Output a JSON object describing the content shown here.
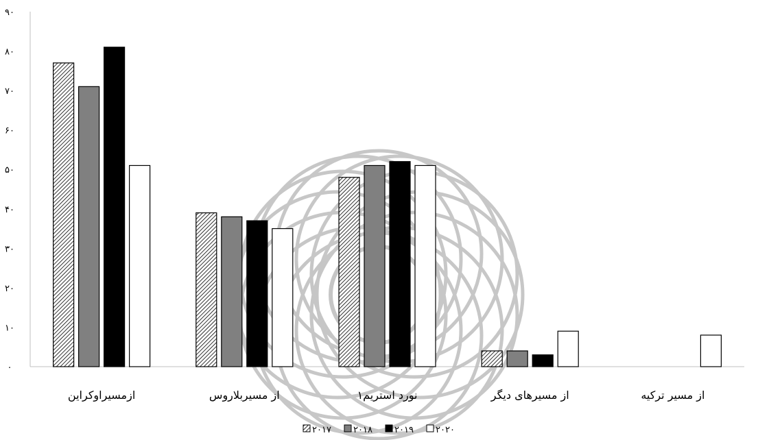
{
  "chart_data": {
    "type": "bar",
    "title": "",
    "xlabel": "",
    "ylabel": "",
    "ylim": [
      0,
      90
    ],
    "yticks": [
      "۰",
      "۱۰",
      "۲۰",
      "۳۰",
      "۴۰",
      "۵۰",
      "۶۰",
      "۷۰",
      "۸۰",
      "۹۰"
    ],
    "categories": [
      "ازمسیراوکراین",
      "از مسیربلاروس",
      "نورد استریم۱",
      "از مسیرهای دیگر",
      "از مسیر ترکیه"
    ],
    "series": [
      {
        "name": "۲۰۱۷",
        "values": [
          77,
          39,
          48,
          4,
          0
        ],
        "fill": "hatch",
        "color": "#ffffff"
      },
      {
        "name": "۲۰۱۸",
        "values": [
          71,
          38,
          51,
          4,
          0
        ],
        "fill": "solid",
        "color": "#808080"
      },
      {
        "name": "۲۰۱۹",
        "values": [
          81,
          37,
          52,
          3,
          0
        ],
        "fill": "solid",
        "color": "#000000"
      },
      {
        "name": "۲۰۲۰",
        "values": [
          51,
          35,
          51,
          9,
          8
        ],
        "fill": "solid",
        "color": "#ffffff"
      }
    ],
    "grid": false,
    "legend_position": "bottom"
  }
}
